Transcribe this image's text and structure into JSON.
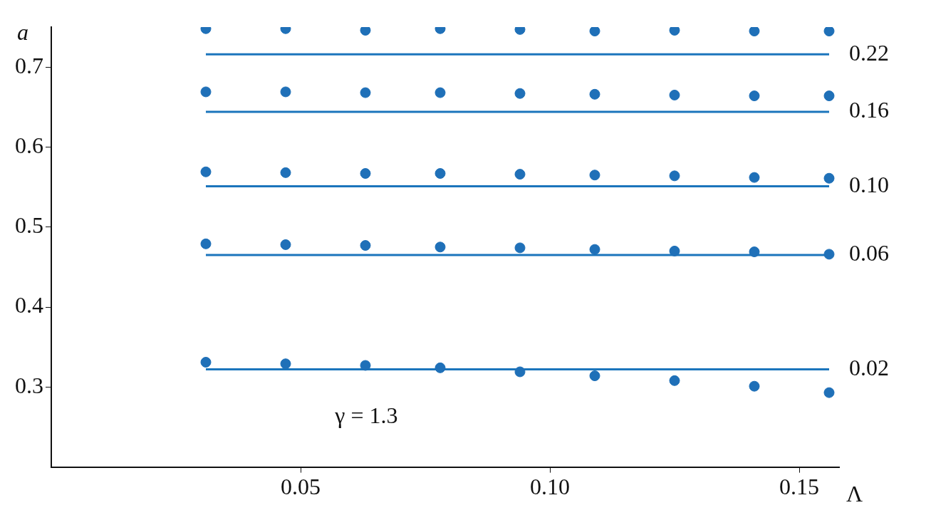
{
  "chart_data": {
    "type": "scatter",
    "xlabel": "Λ",
    "ylabel": "a",
    "x": [
      0.031,
      0.047,
      0.063,
      0.078,
      0.094,
      0.109,
      0.125,
      0.141,
      0.156
    ],
    "series": [
      {
        "color": "#1f70b8",
        "marker": "circle",
        "values": [
          0.748,
          0.748,
          0.746,
          0.748,
          0.747,
          0.745,
          0.746,
          0.745,
          0.745
        ]
      },
      {
        "color": "#1f70b8",
        "marker": "circle",
        "values": [
          0.669,
          0.669,
          0.668,
          0.668,
          0.667,
          0.666,
          0.665,
          0.664,
          0.664
        ]
      },
      {
        "color": "#1f70b8",
        "marker": "circle",
        "values": [
          0.569,
          0.568,
          0.567,
          0.567,
          0.566,
          0.565,
          0.564,
          0.562,
          0.561
        ]
      },
      {
        "color": "#1f70b8",
        "marker": "circle",
        "values": [
          0.479,
          0.478,
          0.477,
          0.475,
          0.474,
          0.472,
          0.47,
          0.469,
          0.466
        ]
      },
      {
        "color": "#1f70b8",
        "marker": "circle",
        "values": [
          0.331,
          0.329,
          0.327,
          0.324,
          0.319,
          0.314,
          0.308,
          0.301,
          0.293
        ]
      },
      {
        "type": "line",
        "name": "0.22",
        "color": "#1b75bc",
        "marker": "none",
        "values": [
          0.716,
          0.716,
          0.716,
          0.716,
          0.716,
          0.716,
          0.716,
          0.716,
          0.716
        ]
      },
      {
        "type": "line",
        "name": "0.16",
        "color": "#1b75bc",
        "marker": "none",
        "values": [
          0.644,
          0.644,
          0.644,
          0.644,
          0.644,
          0.644,
          0.644,
          0.644,
          0.644
        ]
      },
      {
        "type": "line",
        "name": "0.10",
        "color": "#1b75bc",
        "marker": "none",
        "values": [
          0.551,
          0.551,
          0.551,
          0.551,
          0.551,
          0.551,
          0.551,
          0.551,
          0.551
        ]
      },
      {
        "type": "line",
        "name": "0.06",
        "color": "#1b75bc",
        "marker": "none",
        "values": [
          0.465,
          0.465,
          0.465,
          0.465,
          0.465,
          0.465,
          0.465,
          0.465,
          0.465
        ]
      },
      {
        "type": "line",
        "name": "0.02",
        "color": "#1b75bc",
        "marker": "none",
        "values": [
          0.322,
          0.322,
          0.322,
          0.322,
          0.322,
          0.322,
          0.322,
          0.322,
          0.322
        ]
      }
    ],
    "annotations": [
      "γ = 1.3"
    ],
    "xlim": [
      0,
      0.158
    ],
    "ylim": [
      0.2,
      0.75
    ],
    "xticks": [
      {
        "value": 0.05,
        "label": "0.05"
      },
      {
        "value": 0.1,
        "label": "0.10"
      },
      {
        "value": 0.15,
        "label": "0.15"
      }
    ],
    "yticks": [
      0.3,
      0.4,
      0.5,
      0.6,
      0.7
    ],
    "grid": false,
    "legend": false
  }
}
